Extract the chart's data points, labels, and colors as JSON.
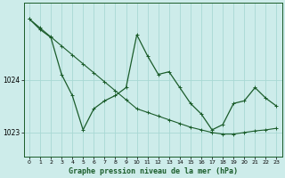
{
  "title": "Graphe pression niveau de la mer (hPa)",
  "background_color": "#cdecea",
  "grid_color": "#a8d8d4",
  "line_color": "#1a5c2a",
  "xlim": [
    -0.5,
    23.5
  ],
  "ylim": [
    1022.55,
    1025.45
  ],
  "yticks": [
    1023,
    1024
  ],
  "xticks": [
    0,
    1,
    2,
    3,
    4,
    5,
    6,
    7,
    8,
    9,
    10,
    11,
    12,
    13,
    14,
    15,
    16,
    17,
    18,
    19,
    20,
    21,
    22,
    23
  ],
  "x": [
    0,
    1,
    2,
    3,
    4,
    5,
    6,
    7,
    8,
    9,
    10,
    11,
    12,
    13,
    14,
    15,
    16,
    17,
    18,
    19,
    20,
    21,
    22,
    23
  ],
  "y_main": [
    1025.15,
    1024.95,
    1024.8,
    1024.1,
    1023.7,
    1023.05,
    1023.45,
    1023.6,
    1023.7,
    1023.85,
    1024.85,
    1024.45,
    1024.1,
    1024.15,
    1023.85,
    1023.55,
    1023.35,
    1023.05,
    1023.15,
    1023.55,
    1023.6,
    1023.85,
    1023.65,
    1023.5
  ],
  "y_trend": [
    1025.15,
    1024.98,
    1024.81,
    1024.64,
    1024.47,
    1024.3,
    1024.13,
    1023.96,
    1023.79,
    1023.62,
    1023.45,
    1023.38,
    1023.31,
    1023.24,
    1023.17,
    1023.1,
    1023.05,
    1023.0,
    1022.97,
    1022.97,
    1023.0,
    1023.03,
    1023.05,
    1023.08
  ]
}
